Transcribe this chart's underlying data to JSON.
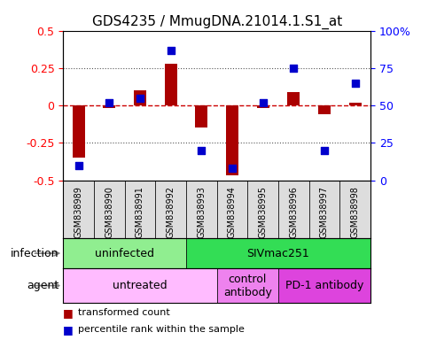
{
  "title": "GDS4235 / MmugDNA.21014.1.S1_at",
  "samples": [
    "GSM838989",
    "GSM838990",
    "GSM838991",
    "GSM838992",
    "GSM838993",
    "GSM838994",
    "GSM838995",
    "GSM838996",
    "GSM838997",
    "GSM838998"
  ],
  "transformed_count": [
    -0.35,
    -0.02,
    0.1,
    0.28,
    -0.15,
    -0.47,
    -0.02,
    0.09,
    -0.06,
    0.02
  ],
  "percentile_rank": [
    10,
    52,
    55,
    87,
    20,
    8,
    52,
    75,
    20,
    65
  ],
  "infection_groups": [
    {
      "label": "uninfected",
      "start": 0,
      "end": 4,
      "color": "#90EE90"
    },
    {
      "label": "SIVmac251",
      "start": 4,
      "end": 10,
      "color": "#33DD55"
    }
  ],
  "agent_groups": [
    {
      "label": "untreated",
      "start": 0,
      "end": 5,
      "color": "#FFBBFF"
    },
    {
      "label": "control\nantibody",
      "start": 5,
      "end": 7,
      "color": "#EE82EE"
    },
    {
      "label": "PD-1 antibody",
      "start": 7,
      "end": 10,
      "color": "#DD44DD"
    }
  ],
  "ylim": [
    -0.5,
    0.5
  ],
  "yticks": [
    -0.5,
    -0.25,
    0,
    0.25,
    0.5
  ],
  "ytick_labels": [
    "-0.5",
    "-0.25",
    "0",
    "0.25",
    "0.5"
  ],
  "y2ticks": [
    0,
    25,
    50,
    75,
    100
  ],
  "y2tick_labels": [
    "0",
    "25",
    "50",
    "75",
    "100%"
  ],
  "bar_color": "#AA0000",
  "dot_color": "#0000CC",
  "ref_line_color": "#CC0000",
  "dotted_line_color": "#555555",
  "bar_width": 0.4,
  "dot_size": 40,
  "sample_area_color": "#DDDDDD",
  "legend_bar_label": "transformed count",
  "legend_dot_label": "percentile rank within the sample",
  "infection_label": "infection",
  "agent_label": "agent"
}
